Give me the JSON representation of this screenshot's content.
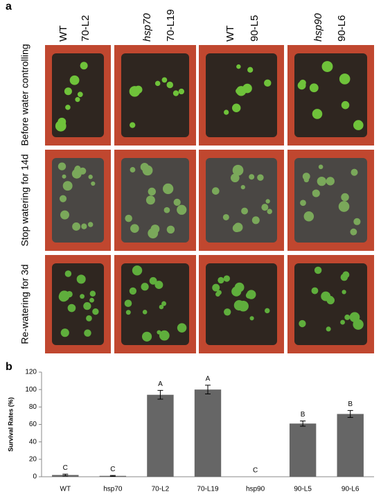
{
  "panel_a": {
    "label": "a",
    "column_labels": [
      "WT",
      "70-L2",
      "hsp70",
      "70-L19",
      "WT",
      "90-L5",
      "hsp90",
      "90-L6"
    ],
    "row_labels": [
      "Before water controlling",
      "Stop watering for 14d",
      "Re-watering for 3d"
    ]
  },
  "panel_b_label": "b",
  "chart_data": {
    "type": "bar",
    "y_label": "Survival Rates (%)",
    "categories": [
      "WT",
      "hsp70",
      "70-L2",
      "70-L19",
      "hsp90",
      "90-L5",
      "90-L6"
    ],
    "values": [
      2,
      1,
      94,
      100,
      0,
      61,
      72
    ],
    "errors": [
      1,
      0.5,
      5,
      5,
      0,
      3,
      4
    ],
    "annotations": [
      "C",
      "C",
      "A",
      "A",
      "C",
      "B",
      "B"
    ],
    "color": "#666666",
    "ylim": [
      0,
      120
    ],
    "yticks": [
      0,
      20,
      40,
      60,
      80,
      100,
      120
    ]
  }
}
